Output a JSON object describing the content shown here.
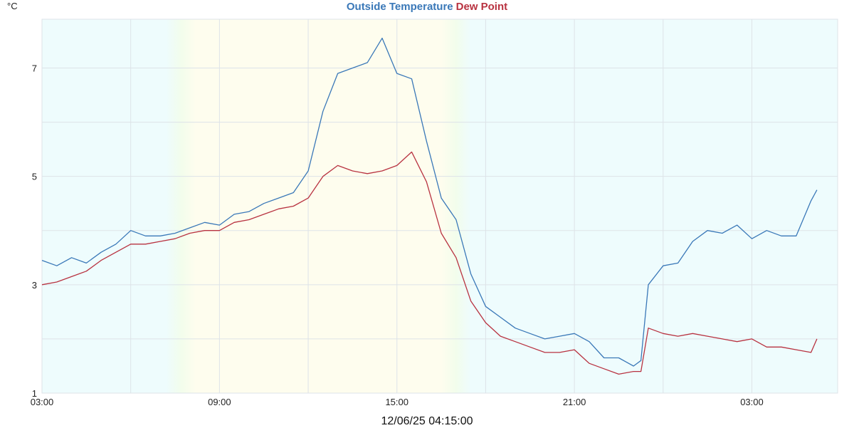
{
  "chart_data": {
    "type": "line",
    "unit_label": "°C",
    "timestamp": "12/06/25 04:15:00",
    "x_tick_labels": [
      "03:00",
      "09:00",
      "15:00",
      "21:00",
      "03:00"
    ],
    "x_tick_hours": [
      3,
      9,
      15,
      21,
      27
    ],
    "x_range_hours": [
      3,
      29.9
    ],
    "y_ticks": [
      1,
      3,
      5,
      7
    ],
    "ylim": [
      1,
      7.9
    ],
    "grid": true,
    "legend": "top-center",
    "series": [
      {
        "name": "Outside Temperature",
        "color": "#3a78b8",
        "x": [
          3.0,
          3.5,
          4.0,
          4.5,
          5.0,
          5.5,
          6.0,
          6.5,
          7.0,
          7.5,
          8.0,
          8.5,
          9.0,
          9.5,
          10.0,
          10.5,
          11.0,
          11.5,
          12.0,
          12.5,
          13.0,
          13.5,
          14.0,
          14.5,
          15.0,
          15.5,
          16.0,
          16.5,
          17.0,
          17.5,
          18.0,
          18.5,
          19.0,
          19.5,
          20.0,
          20.5,
          21.0,
          21.5,
          22.0,
          22.5,
          23.0,
          23.25,
          23.5,
          24.0,
          24.5,
          25.0,
          25.5,
          26.0,
          26.5,
          27.0,
          27.5,
          28.0,
          28.5,
          29.0,
          29.2
        ],
        "values": [
          3.45,
          3.35,
          3.5,
          3.4,
          3.6,
          3.75,
          4.0,
          3.9,
          3.9,
          3.95,
          4.05,
          4.15,
          4.1,
          4.3,
          4.35,
          4.5,
          4.6,
          4.7,
          5.1,
          6.2,
          6.9,
          7.0,
          7.1,
          7.55,
          6.9,
          6.8,
          5.65,
          4.6,
          4.2,
          3.2,
          2.6,
          2.4,
          2.2,
          2.1,
          2.0,
          2.05,
          2.1,
          1.95,
          1.65,
          1.65,
          1.5,
          1.6,
          3.0,
          3.35,
          3.4,
          3.8,
          4.0,
          3.95,
          4.1,
          3.85,
          4.0,
          3.9,
          3.9,
          4.55,
          4.75
        ]
      },
      {
        "name": "Dew Point",
        "color": "#b83240",
        "x": [
          3.0,
          3.5,
          4.0,
          4.5,
          5.0,
          5.5,
          6.0,
          6.5,
          7.0,
          7.5,
          8.0,
          8.5,
          9.0,
          9.5,
          10.0,
          10.5,
          11.0,
          11.5,
          12.0,
          12.5,
          13.0,
          13.5,
          14.0,
          14.5,
          15.0,
          15.5,
          16.0,
          16.5,
          17.0,
          17.5,
          18.0,
          18.5,
          19.0,
          19.5,
          20.0,
          20.5,
          21.0,
          21.5,
          22.0,
          22.5,
          23.0,
          23.25,
          23.5,
          24.0,
          24.5,
          25.0,
          25.5,
          26.0,
          26.5,
          27.0,
          27.5,
          28.0,
          28.5,
          29.0,
          29.2
        ],
        "values": [
          3.0,
          3.05,
          3.15,
          3.25,
          3.45,
          3.6,
          3.75,
          3.75,
          3.8,
          3.85,
          3.95,
          4.0,
          4.0,
          4.15,
          4.2,
          4.3,
          4.4,
          4.45,
          4.6,
          5.0,
          5.2,
          5.1,
          5.05,
          5.1,
          5.2,
          5.45,
          4.9,
          3.95,
          3.5,
          2.7,
          2.3,
          2.05,
          1.95,
          1.85,
          1.75,
          1.75,
          1.8,
          1.55,
          1.45,
          1.35,
          1.4,
          1.4,
          2.2,
          2.1,
          2.05,
          2.1,
          2.05,
          2.0,
          1.95,
          2.0,
          1.85,
          1.85,
          1.8,
          1.75,
          2.0
        ]
      }
    ]
  },
  "background_bands": {
    "night_color": "#eefcfd",
    "day_color": "#fefdee",
    "twilight_color": "#f2fdec",
    "day_start_hour": 8.2,
    "day_end_hour": 17.0,
    "twilight_hours": 1.0
  },
  "grid_color": "#dde3e8"
}
